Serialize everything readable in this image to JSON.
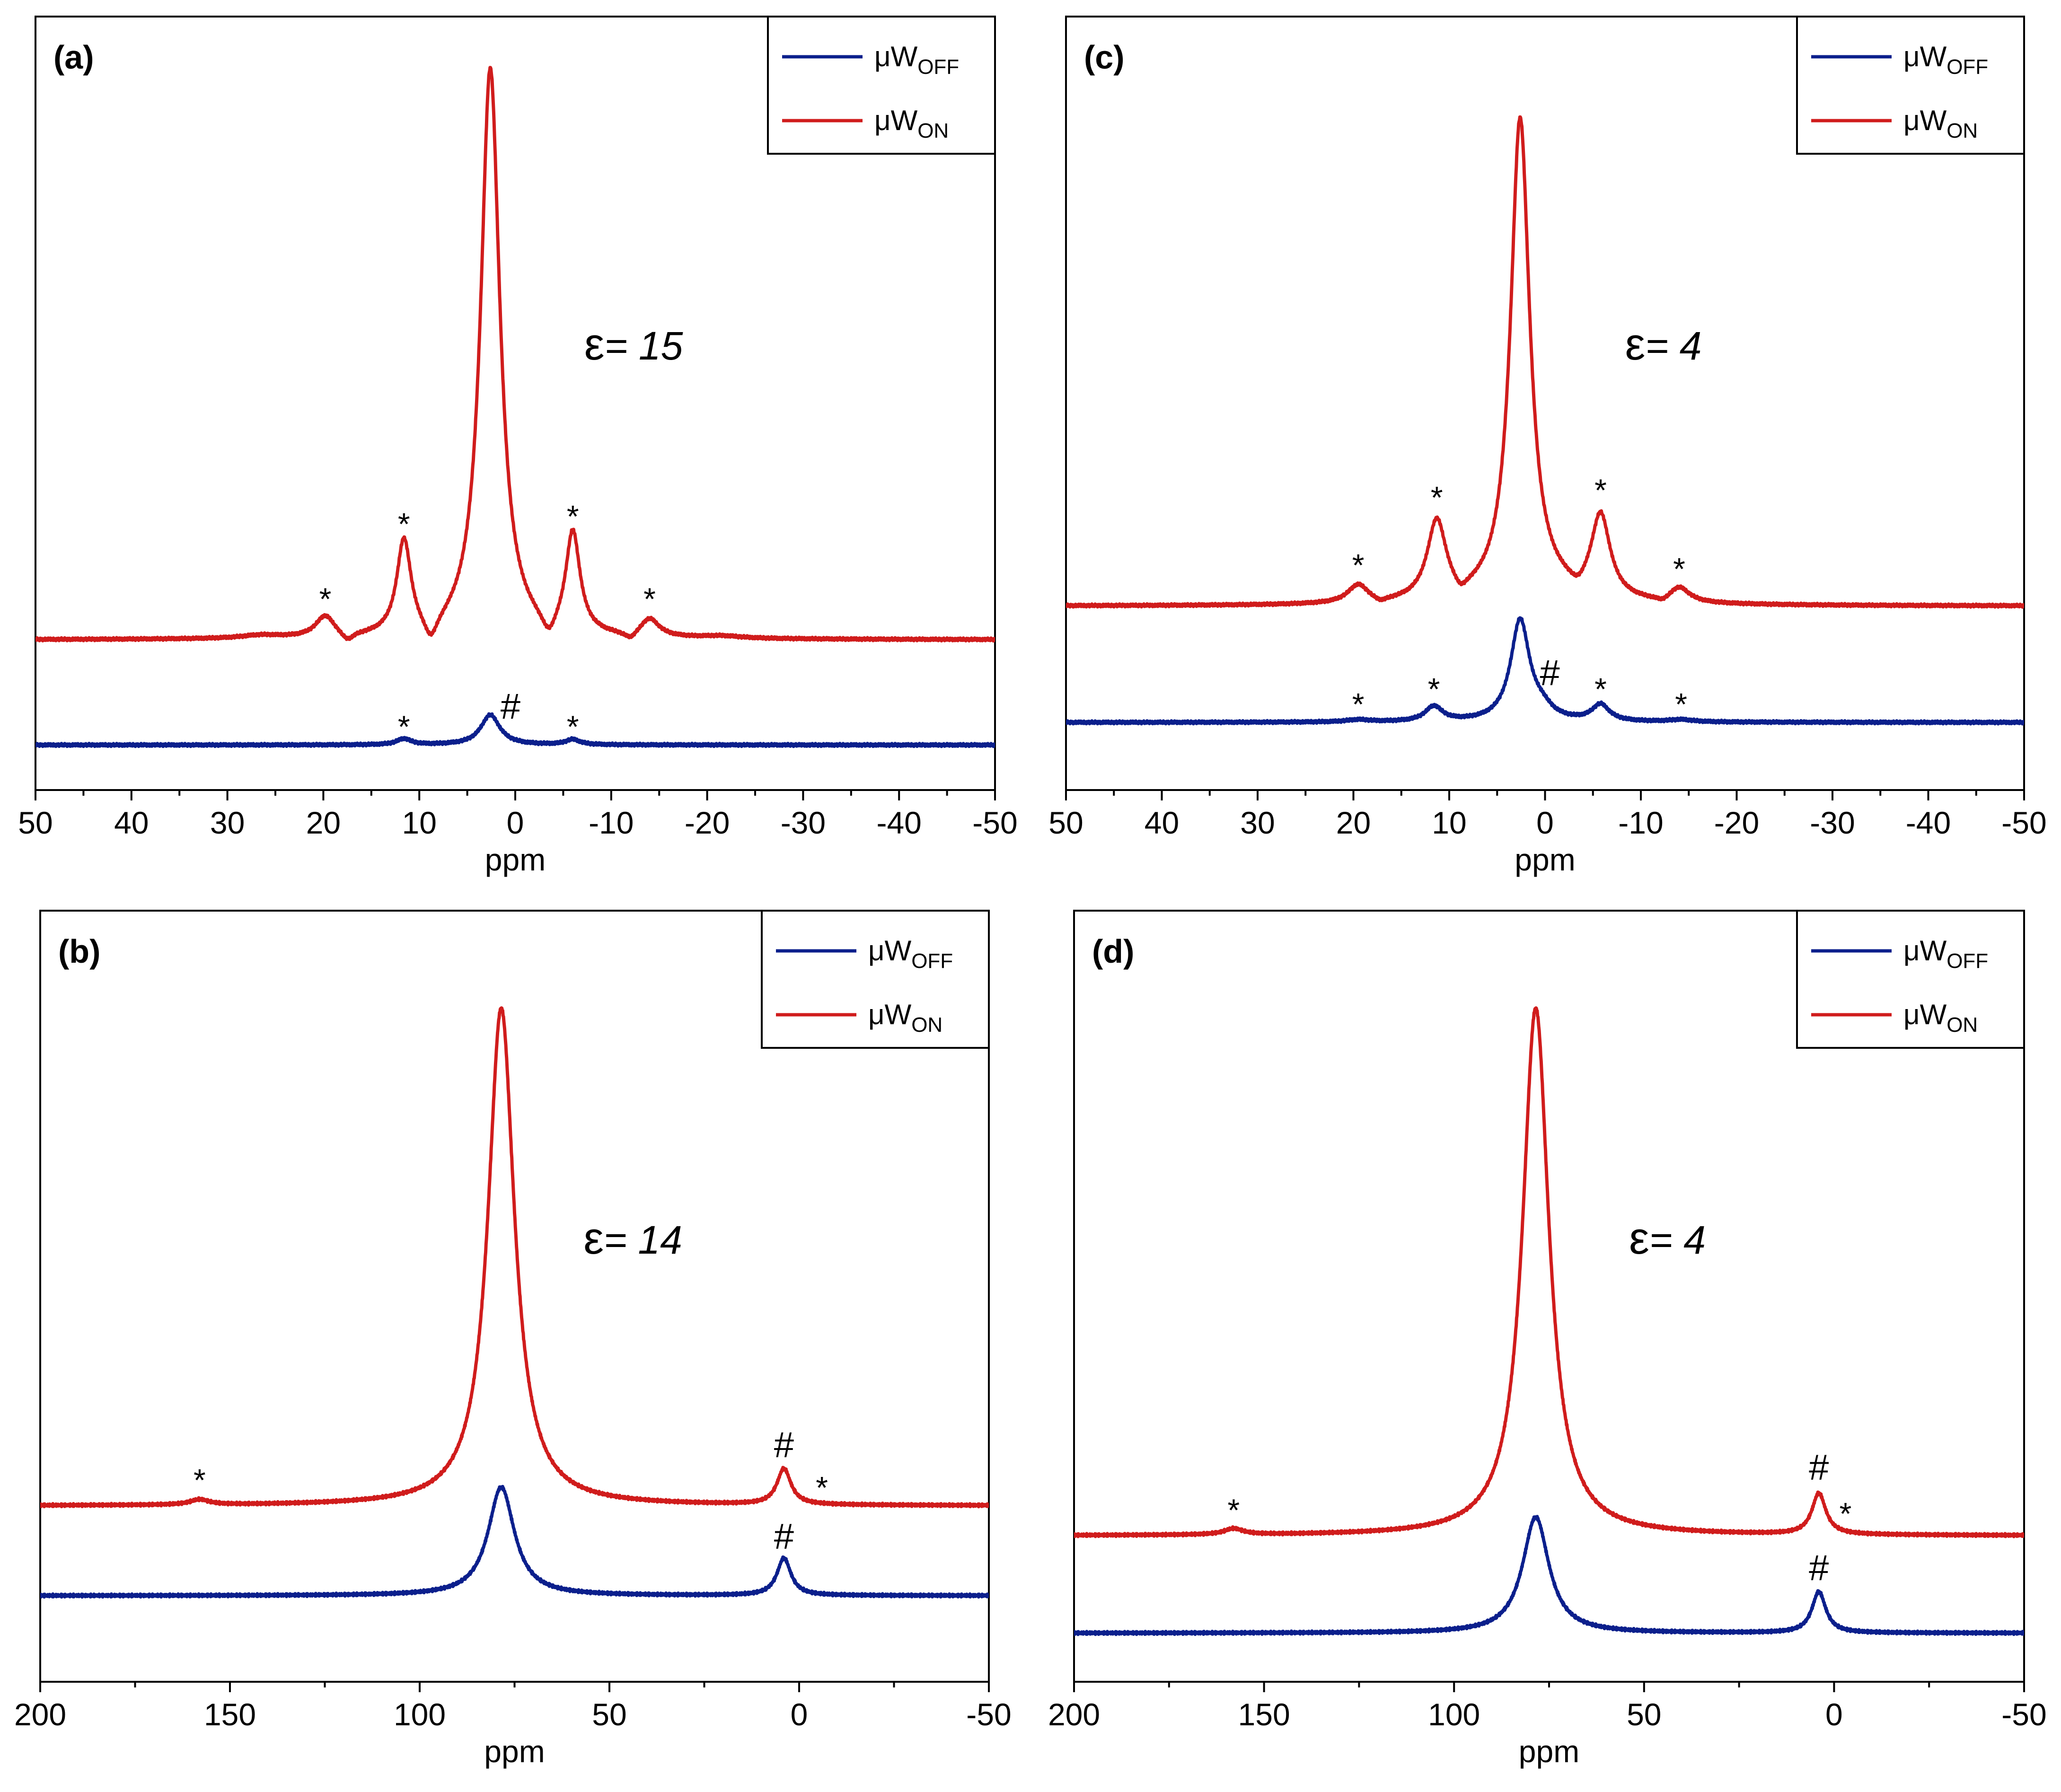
{
  "figure": {
    "panels": [
      "a",
      "c",
      "b",
      "d"
    ]
  },
  "chart_data": [
    {
      "id": "a",
      "type": "line",
      "label": "(a)",
      "epsilon_symbol": "ε",
      "epsilon_value": "= 15",
      "xlabel": "ppm",
      "xlim": [
        50,
        -50
      ],
      "ylim": [
        -0.03,
        1.0
      ],
      "xticks": [
        50,
        40,
        30,
        20,
        10,
        0,
        -10,
        -20,
        -30,
        -40,
        -50
      ],
      "xtick_labels": [
        "50",
        "40",
        "30",
        "20",
        "10",
        "0",
        "-10",
        "-20",
        "-30",
        "-40",
        "-50"
      ],
      "legend": {
        "placement": "top-right",
        "entries": [
          {
            "base": "μW",
            "sub": "OFF"
          },
          {
            "base": "μW",
            "sub": "ON"
          }
        ]
      },
      "series": [
        {
          "name": "μW OFF",
          "color": "#0b1f8c",
          "baseline": 0.03,
          "peaks": [
            [
              2.6,
              1.2,
              0.04
            ],
            [
              11.6,
              0.9,
              0.008
            ],
            [
              -6.0,
              0.9,
              0.007
            ]
          ]
        },
        {
          "name": "μW ON",
          "color": "#d01c1c",
          "baseline": 0.17,
          "peaks": [
            [
              2.6,
              1.2,
              0.76
            ],
            [
              11.6,
              0.9,
              0.125
            ],
            [
              -6.0,
              0.9,
              0.135
            ],
            [
              19.8,
              1.2,
              0.028
            ],
            [
              -14.0,
              1.2,
              0.024
            ],
            [
              26.5,
              2.5,
              0.004
            ],
            [
              -21.5,
              2.5,
              0.003
            ]
          ],
          "dips": [
            [
              8.8,
              0.9,
              0.032
            ],
            [
              -3.5,
              0.9,
              0.028
            ],
            [
              17.5,
              0.8,
              0.012
            ],
            [
              -12.0,
              0.8,
              0.01
            ]
          ]
        }
      ],
      "annotations": [
        {
          "text": "*",
          "x": 19.8,
          "y": 0.21,
          "kind": "star"
        },
        {
          "text": "*",
          "x": 11.6,
          "y": 0.31,
          "kind": "star"
        },
        {
          "text": "*",
          "x": -6.0,
          "y": 0.32,
          "kind": "star"
        },
        {
          "text": "*",
          "x": -14.0,
          "y": 0.21,
          "kind": "star"
        },
        {
          "text": "*",
          "x": 11.6,
          "y": 0.04,
          "kind": "star"
        },
        {
          "text": "#",
          "x": 0.5,
          "y": 0.065,
          "kind": "hash"
        },
        {
          "text": "*",
          "x": -6.0,
          "y": 0.04,
          "kind": "star"
        }
      ]
    },
    {
      "id": "c",
      "type": "line",
      "label": "(c)",
      "epsilon_symbol": "ε",
      "epsilon_value": "= 4",
      "xlabel": "ppm",
      "xlim": [
        50,
        -50
      ],
      "ylim": [
        -0.03,
        1.0
      ],
      "xticks": [
        50,
        40,
        30,
        20,
        10,
        0,
        -10,
        -20,
        -30,
        -40,
        -50
      ],
      "xtick_labels": [
        "50",
        "40",
        "30",
        "20",
        "10",
        "0",
        "-10",
        "-20",
        "-30",
        "-40",
        "-50"
      ],
      "legend": {
        "placement": "top-right",
        "entries": [
          {
            "base": "μW",
            "sub": "OFF"
          },
          {
            "base": "μW",
            "sub": "ON"
          }
        ]
      },
      "series": [
        {
          "name": "μW OFF",
          "color": "#0b1f8c",
          "baseline": 0.06,
          "peaks": [
            [
              2.6,
              1.2,
              0.135
            ],
            [
              11.6,
              1.1,
              0.02
            ],
            [
              -5.8,
              1.1,
              0.022
            ],
            [
              0.3,
              1.3,
              0.012
            ],
            [
              19.5,
              1.5,
              0.003
            ],
            [
              -14.2,
              1.5,
              0.003
            ]
          ]
        },
        {
          "name": "μW ON",
          "color": "#d01c1c",
          "baseline": 0.215,
          "peaks": [
            [
              2.6,
              1.2,
              0.64
            ],
            [
              11.3,
              1.2,
              0.105
            ],
            [
              -5.8,
              1.2,
              0.11
            ],
            [
              19.5,
              1.3,
              0.024
            ],
            [
              -14.0,
              1.3,
              0.02
            ],
            [
              0.0,
              4.0,
              0.01
            ]
          ],
          "dips": [
            [
              8.8,
              0.9,
              0.015
            ],
            [
              -3.4,
              0.9,
              0.012
            ],
            [
              17.2,
              0.9,
              0.006
            ],
            [
              -12.3,
              0.9,
              0.006
            ]
          ]
        }
      ],
      "annotations": [
        {
          "text": "*",
          "x": 19.5,
          "y": 0.255,
          "kind": "star"
        },
        {
          "text": "*",
          "x": 11.3,
          "y": 0.345,
          "kind": "star"
        },
        {
          "text": "*",
          "x": -5.8,
          "y": 0.355,
          "kind": "star"
        },
        {
          "text": "*",
          "x": -14.0,
          "y": 0.25,
          "kind": "star"
        },
        {
          "text": "*",
          "x": 19.5,
          "y": 0.07,
          "kind": "star"
        },
        {
          "text": "*",
          "x": 11.6,
          "y": 0.09,
          "kind": "star"
        },
        {
          "text": "#",
          "x": -0.5,
          "y": 0.11,
          "kind": "hash"
        },
        {
          "text": "*",
          "x": -5.8,
          "y": 0.09,
          "kind": "star"
        },
        {
          "text": "*",
          "x": -14.2,
          "y": 0.07,
          "kind": "star"
        }
      ]
    },
    {
      "id": "b",
      "type": "line",
      "label": "(b)",
      "epsilon_symbol": "ε",
      "epsilon_value": "= 14",
      "xlabel": "ppm",
      "xlim": [
        200,
        -50
      ],
      "ylim": [
        -0.03,
        1.0
      ],
      "xticks": [
        200,
        150,
        100,
        50,
        0,
        -50
      ],
      "xtick_labels": [
        "200",
        "150",
        "100",
        "50",
        "0",
        "-50"
      ],
      "legend": {
        "placement": "top-right",
        "entries": [
          {
            "base": "μW",
            "sub": "OFF"
          },
          {
            "base": "μW",
            "sub": "ON"
          }
        ]
      },
      "series": [
        {
          "name": "μW OFF",
          "color": "#0b1f8c",
          "baseline": 0.085,
          "peaks": [
            [
              78.5,
              4.2,
              0.145
            ],
            [
              4.0,
              2.2,
              0.05
            ]
          ]
        },
        {
          "name": "μW ON",
          "color": "#d01c1c",
          "baseline": 0.205,
          "peaks": [
            [
              78.5,
              4.2,
              0.665
            ],
            [
              4.0,
              2.2,
              0.048
            ],
            [
              158.0,
              3.0,
              0.007
            ]
          ]
        }
      ],
      "annotations": [
        {
          "text": "*",
          "x": 158.0,
          "y": 0.225,
          "kind": "star"
        },
        {
          "text": "#",
          "x": 4.0,
          "y": 0.27,
          "kind": "hash"
        },
        {
          "text": "*",
          "x": -6.0,
          "y": 0.215,
          "kind": "star"
        },
        {
          "text": "#",
          "x": 4.0,
          "y": 0.148,
          "kind": "hash"
        }
      ]
    },
    {
      "id": "d",
      "type": "line",
      "label": "(d)",
      "epsilon_symbol": "ε",
      "epsilon_value": "= 4",
      "xlabel": "ppm",
      "xlim": [
        200,
        -50
      ],
      "ylim": [
        -0.03,
        1.0
      ],
      "xticks": [
        200,
        150,
        100,
        50,
        0,
        -50
      ],
      "xtick_labels": [
        "200",
        "150",
        "100",
        "50",
        "0",
        "-50"
      ],
      "legend": {
        "placement": "top-right",
        "entries": [
          {
            "base": "μW",
            "sub": "OFF"
          },
          {
            "base": "μW",
            "sub": "ON"
          }
        ]
      },
      "series": [
        {
          "name": "μW OFF",
          "color": "#0b1f8c",
          "baseline": 0.035,
          "peaks": [
            [
              78.5,
              4.2,
              0.155
            ],
            [
              4.0,
              2.2,
              0.055
            ]
          ]
        },
        {
          "name": "μW ON",
          "color": "#d01c1c",
          "baseline": 0.165,
          "peaks": [
            [
              78.5,
              4.2,
              0.705
            ],
            [
              4.0,
              2.2,
              0.055
            ],
            [
              158.0,
              3.0,
              0.008
            ]
          ]
        }
      ],
      "annotations": [
        {
          "text": "*",
          "x": 158.0,
          "y": 0.185,
          "kind": "star"
        },
        {
          "text": "#",
          "x": 4.0,
          "y": 0.24,
          "kind": "hash"
        },
        {
          "text": "*",
          "x": -3.0,
          "y": 0.18,
          "kind": "star"
        },
        {
          "text": "#",
          "x": 4.0,
          "y": 0.106,
          "kind": "hash"
        }
      ]
    }
  ]
}
